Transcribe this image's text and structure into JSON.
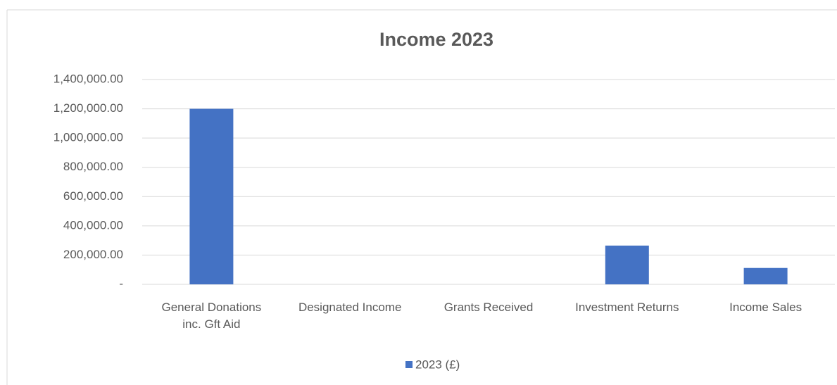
{
  "chart_data": {
    "type": "bar",
    "title": "Income 2023",
    "categories": [
      "General Donations inc. Gft Aid",
      "Designated Income",
      "Grants Received",
      "Investment Returns",
      "Income Sales"
    ],
    "series": [
      {
        "name": "2023 (£)",
        "color": "#4472c4",
        "values": [
          1200000,
          0,
          0,
          265000,
          112000
        ]
      }
    ],
    "ylim": [
      0,
      1400000
    ],
    "yticks": [
      {
        "value": 0,
        "label": "-"
      },
      {
        "value": 200000,
        "label": "200,000.00"
      },
      {
        "value": 400000,
        "label": "400,000.00"
      },
      {
        "value": 600000,
        "label": "600,000.00"
      },
      {
        "value": 800000,
        "label": "800,000.00"
      },
      {
        "value": 1000000,
        "label": "1,000,000.00"
      },
      {
        "value": 1200000,
        "label": "1,200,000.00"
      },
      {
        "value": 1400000,
        "label": "1,400,000.00"
      }
    ],
    "grid": true,
    "legend": "bottom"
  }
}
